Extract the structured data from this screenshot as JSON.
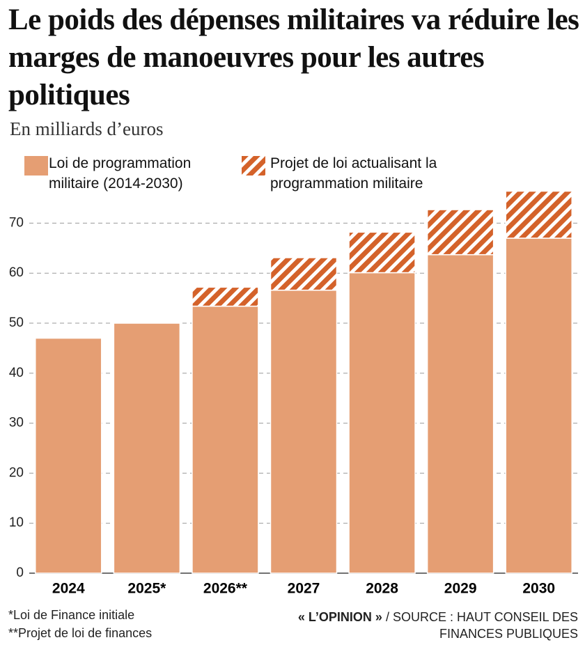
{
  "chart_data": {
    "type": "stacked_bar",
    "title": "Le poids des dépenses militaires va réduire les marges de manoeuvres pour les autres politiques",
    "subtitle": "En milliards d’euros",
    "categories": [
      "2024",
      "2025*",
      "2026**",
      "2027",
      "2028",
      "2029",
      "2030"
    ],
    "series": [
      {
        "name": "Loi de programmation militaire (2014-2030)",
        "color": "#e59e73",
        "values": [
          47,
          50,
          53.4,
          56.6,
          60.1,
          63.7,
          67
        ]
      },
      {
        "name": "Projet de loi actualisant la programmation militaire",
        "color": "#d4622a",
        "pattern": "hatch",
        "values": [
          null,
          null,
          3.8,
          6.5,
          8.1,
          9,
          9.4
        ]
      }
    ],
    "ylim": [
      0,
      78
    ],
    "yticks": [
      0,
      10,
      20,
      30,
      40,
      50,
      60,
      70
    ],
    "grid": true,
    "notes": [
      "*Loi de Finance initiale",
      "**Projet de loi de finances"
    ],
    "source": {
      "brand": "« L’OPINION »",
      "lines": [
        "/ SOURCE : HAUT CONSEIL DES",
        "FINANCES PUBLIQUES"
      ]
    }
  }
}
